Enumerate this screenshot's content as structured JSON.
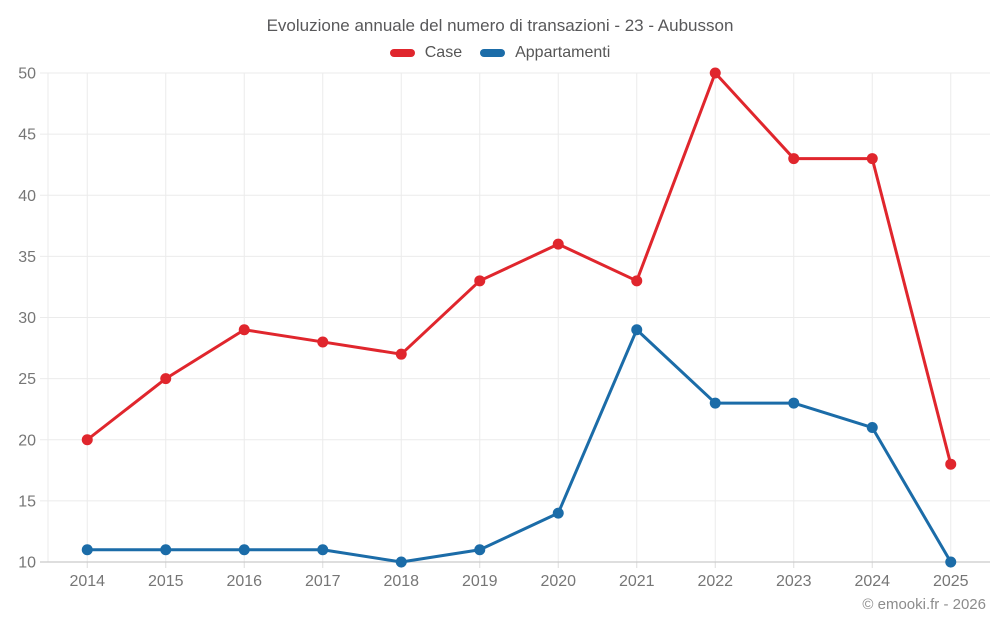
{
  "chart_data": {
    "type": "line",
    "title": "Evoluzione annuale del numero di transazioni - 23 - Aubusson",
    "xlabel": "",
    "ylabel": "",
    "categories": [
      "2014",
      "2015",
      "2016",
      "2017",
      "2018",
      "2019",
      "2020",
      "2021",
      "2022",
      "2023",
      "2024",
      "2025"
    ],
    "series": [
      {
        "name": "Case",
        "color": "#e0262d",
        "values": [
          20,
          25,
          29,
          28,
          27,
          33,
          36,
          33,
          50,
          43,
          43,
          18
        ]
      },
      {
        "name": "Appartamenti",
        "color": "#1b6ca8",
        "values": [
          11,
          11,
          11,
          11,
          10,
          11,
          14,
          29,
          23,
          23,
          21,
          10
        ]
      }
    ],
    "ylim": [
      10,
      50
    ],
    "yticks": [
      10,
      15,
      20,
      25,
      30,
      35,
      40,
      45,
      50
    ],
    "grid": true,
    "legend_position": "top",
    "marker": "circle",
    "footer": "© emooki.fr - 2026"
  }
}
